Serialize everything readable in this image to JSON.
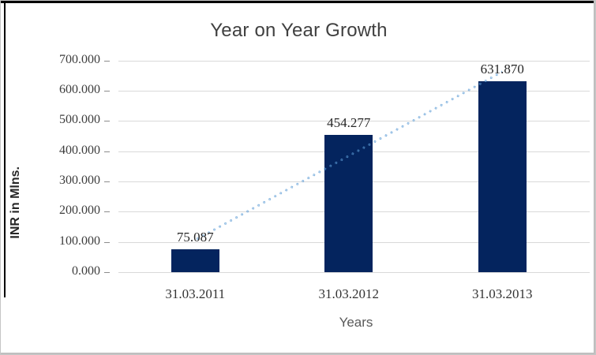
{
  "chart_data": {
    "type": "bar",
    "title": "Year on Year Growth",
    "xlabel": "Years",
    "ylabel": "INR in Mlns.",
    "categories": [
      "31.03.2011",
      "31.03.2012",
      "31.03.2013"
    ],
    "values": [
      75.087,
      454.277,
      631.87
    ],
    "data_labels": [
      "75.087",
      "454.277",
      "631.870"
    ],
    "ylim": [
      0,
      700
    ],
    "ytick_step": 100,
    "ytick_labels": [
      "0.000",
      "100.000",
      "200.000",
      "300.000",
      "400.000",
      "500.000",
      "600.000",
      "700.000"
    ],
    "grid": true,
    "legend": "none",
    "bar_color": "#04245e",
    "trendline": {
      "type": "linear",
      "style": "dotted",
      "color": "#5b9bd5"
    },
    "gridline_color": "#d9d9d9"
  }
}
